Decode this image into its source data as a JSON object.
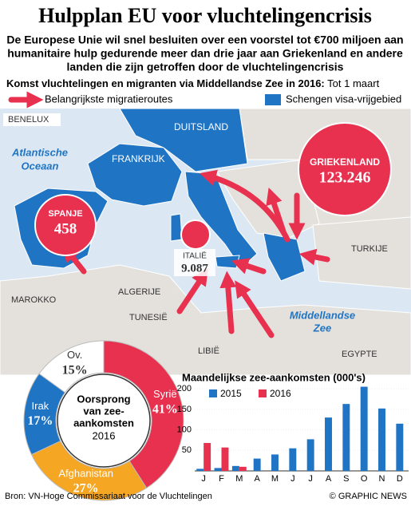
{
  "header": {
    "title": "Hulpplan EU voor vluchtelingencrisis",
    "subtitle_lines": [
      "De Europese Unie wil snel besluiten over een voorstel tot €700 miljoen aan",
      "humanitaire hulp gedurende meer dan drie jaar aan Griekenland en andere",
      "landen die zijn getroffen door de vluchtelingencrisis"
    ]
  },
  "map": {
    "title": "Komst vluchtelingen en migranten via Middellandse Zee in 2016:",
    "title_note": "Tot 1 maart",
    "legend": [
      "Belangrijkste migratieroutes",
      "Schengen visa-vrijgebied"
    ],
    "labels": {
      "benelux": "BENELUX",
      "duitsland": "DUITSLAND",
      "frankrijk": "FRANKRIJK",
      "ocean1": "Atlantische",
      "ocean2": "Oceaan",
      "turkije": "TURKIJE",
      "marokko": "MAROKKO",
      "algerije": "ALGERIJE",
      "tunesie": "TUNESIË",
      "libie": "LIBIË",
      "egypte": "EGYPTE",
      "zee1": "Middellandse",
      "zee2": "Zee"
    },
    "arrivals": [
      {
        "country": "SPANJE",
        "count": "458"
      },
      {
        "country": "ITALIË",
        "count": "9.087"
      },
      {
        "country": "GRIEKENLAND",
        "count": "123.246"
      }
    ]
  },
  "chart_data": [
    {
      "type": "pie",
      "title_lines": [
        "Oorsprong",
        "van zee-",
        "aankomsten"
      ],
      "subtitle": "2016",
      "categories": [
        "Syrië",
        "Afghanistan",
        "Irak",
        "Ov."
      ],
      "values": [
        41,
        27,
        17,
        15
      ],
      "value_labels": [
        "41%",
        "27%",
        "17%",
        "15%"
      ],
      "colors": [
        "#e8304f",
        "#f5a623",
        "#1f74c4",
        "#ffffff"
      ]
    },
    {
      "type": "bar",
      "title": "Maandelijkse zee-aankomsten (000's)",
      "categories": [
        "J",
        "F",
        "M",
        "A",
        "M",
        "J",
        "J",
        "A",
        "S",
        "O",
        "N",
        "D"
      ],
      "series": [
        {
          "name": "2015",
          "color": "#1f74c4",
          "values": [
            5,
            7,
            12,
            30,
            40,
            55,
            77,
            130,
            163,
            205,
            152,
            115
          ]
        },
        {
          "name": "2016",
          "color": "#e8304f",
          "values": [
            68,
            57,
            10,
            null,
            null,
            null,
            null,
            null,
            null,
            null,
            null,
            null
          ]
        }
      ],
      "ylim": [
        0,
        210
      ],
      "yticks": [
        50,
        100,
        150,
        200
      ],
      "grid": false
    }
  ],
  "footer": {
    "source": "Bron: VN-Hoge Commissariaat voor de Vluchtelingen",
    "credit": "© GRAPHIC NEWS"
  }
}
